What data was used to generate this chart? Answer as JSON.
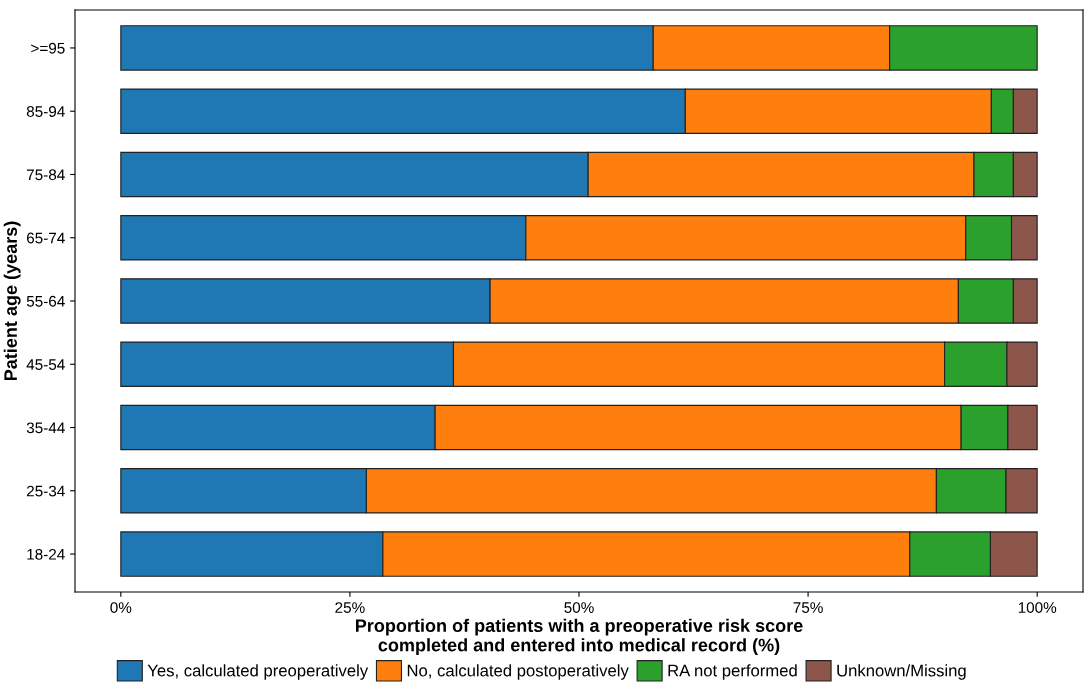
{
  "chart_data": {
    "type": "bar",
    "orientation": "horizontal",
    "stacked": true,
    "categories": [
      ">=95",
      "85-94",
      "75-84",
      "65-74",
      "55-64",
      "45-54",
      "35-44",
      "25-34",
      "18-24"
    ],
    "series": [
      {
        "name": "Yes, calculated preoperatively",
        "color": "#1f77b4",
        "values": [
          58.1,
          61.6,
          51.0,
          44.2,
          40.3,
          36.3,
          34.3,
          26.8,
          28.6
        ]
      },
      {
        "name": "No, calculated postoperatively",
        "color": "#ff7f0e",
        "values": [
          25.8,
          33.4,
          42.1,
          48.0,
          51.1,
          53.6,
          57.4,
          62.2,
          57.5
        ]
      },
      {
        "name": "RA not performed",
        "color": "#2ca02c",
        "values": [
          16.1,
          2.4,
          4.3,
          5.0,
          6.0,
          6.8,
          5.1,
          7.6,
          8.8
        ]
      },
      {
        "name": "Unknown/Missing",
        "color": "#8c564b",
        "values": [
          null,
          2.6,
          2.6,
          2.8,
          2.6,
          3.3,
          3.2,
          3.4,
          5.1
        ]
      }
    ],
    "xlabel": "Proportion of patients with a preoperative risk score\ncompleted and entered into medical record (%)",
    "ylabel": "Patient age (years)",
    "xlim": [
      -5,
      105
    ],
    "xticks": [
      {
        "value": 0,
        "label": "0%"
      },
      {
        "value": 25,
        "label": "25%"
      },
      {
        "value": 50,
        "label": "50%"
      },
      {
        "value": 75,
        "label": "75%"
      },
      {
        "value": 100,
        "label": "100%"
      }
    ],
    "grid": false,
    "legend": "bottom"
  }
}
